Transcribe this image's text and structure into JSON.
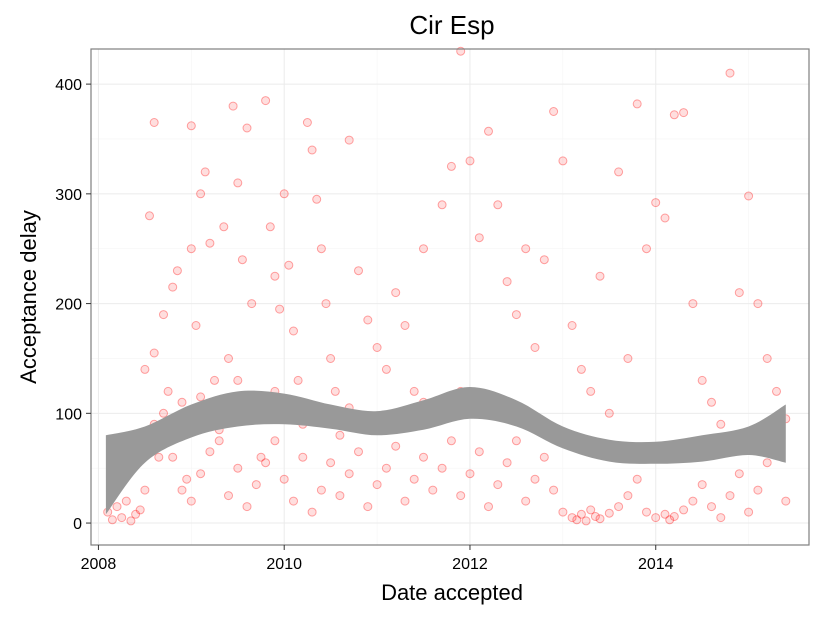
{
  "chart_data": {
    "type": "scatter",
    "title": "Cir Esp",
    "xlabel": "Date accepted",
    "ylabel": "Acceptance delay",
    "xlim": [
      2007.92,
      2015.65
    ],
    "ylim": [
      -20,
      432
    ],
    "x_ticks": [
      2008,
      2010,
      2012,
      2014
    ],
    "x_tick_labels": [
      "2008",
      "2010",
      "2012",
      "2014"
    ],
    "y_ticks": [
      0,
      100,
      200,
      300,
      400
    ],
    "y_tick_labels": [
      "0",
      "100",
      "200",
      "300",
      "400"
    ],
    "grid": true,
    "point_color": "#ff0000",
    "smooth_band_color": "#999999",
    "smooth_band": {
      "x": [
        2008.08,
        2008.5,
        2009.0,
        2009.5,
        2010.0,
        2010.5,
        2011.0,
        2011.5,
        2012.0,
        2012.5,
        2013.0,
        2013.5,
        2014.0,
        2014.5,
        2015.0,
        2015.4
      ],
      "lower": [
        8,
        55,
        78,
        88,
        90,
        86,
        80,
        85,
        95,
        88,
        68,
        56,
        54,
        56,
        62,
        55
      ],
      "upper": [
        80,
        88,
        108,
        120,
        118,
        108,
        102,
        112,
        124,
        112,
        88,
        76,
        74,
        80,
        88,
        108
      ]
    },
    "points": [
      [
        2008.1,
        10
      ],
      [
        2008.15,
        3
      ],
      [
        2008.2,
        15
      ],
      [
        2008.25,
        5
      ],
      [
        2008.3,
        20
      ],
      [
        2008.35,
        2
      ],
      [
        2008.4,
        8
      ],
      [
        2008.45,
        12
      ],
      [
        2008.5,
        30
      ],
      [
        2008.5,
        140
      ],
      [
        2008.55,
        280
      ],
      [
        2008.6,
        365
      ],
      [
        2008.6,
        155
      ],
      [
        2008.65,
        60
      ],
      [
        2008.7,
        190
      ],
      [
        2008.75,
        120
      ],
      [
        2008.8,
        215
      ],
      [
        2008.85,
        230
      ],
      [
        2008.9,
        95
      ],
      [
        2008.95,
        40
      ],
      [
        2009.0,
        362
      ],
      [
        2009.0,
        250
      ],
      [
        2009.05,
        180
      ],
      [
        2009.1,
        300
      ],
      [
        2009.15,
        320
      ],
      [
        2009.2,
        255
      ],
      [
        2009.25,
        130
      ],
      [
        2009.3,
        75
      ],
      [
        2009.35,
        270
      ],
      [
        2009.4,
        150
      ],
      [
        2009.45,
        380
      ],
      [
        2009.5,
        310
      ],
      [
        2009.55,
        240
      ],
      [
        2009.6,
        360
      ],
      [
        2009.65,
        200
      ],
      [
        2009.7,
        110
      ],
      [
        2009.75,
        60
      ],
      [
        2009.8,
        385
      ],
      [
        2009.85,
        270
      ],
      [
        2009.9,
        225
      ],
      [
        2009.95,
        195
      ],
      [
        2010.0,
        300
      ],
      [
        2010.05,
        235
      ],
      [
        2010.1,
        175
      ],
      [
        2010.15,
        130
      ],
      [
        2010.2,
        90
      ],
      [
        2010.25,
        365
      ],
      [
        2010.3,
        340
      ],
      [
        2010.35,
        295
      ],
      [
        2010.4,
        250
      ],
      [
        2010.45,
        200
      ],
      [
        2010.5,
        150
      ],
      [
        2010.55,
        120
      ],
      [
        2010.6,
        80
      ],
      [
        2010.7,
        349
      ],
      [
        2010.8,
        230
      ],
      [
        2010.9,
        185
      ],
      [
        2011.0,
        160
      ],
      [
        2011.1,
        140
      ],
      [
        2011.2,
        210
      ],
      [
        2011.3,
        180
      ],
      [
        2011.4,
        120
      ],
      [
        2011.5,
        250
      ],
      [
        2011.6,
        100
      ],
      [
        2011.7,
        290
      ],
      [
        2011.8,
        325
      ],
      [
        2011.9,
        430
      ],
      [
        2012.0,
        330
      ],
      [
        2012.1,
        260
      ],
      [
        2012.2,
        357
      ],
      [
        2012.3,
        290
      ],
      [
        2012.4,
        220
      ],
      [
        2012.5,
        190
      ],
      [
        2012.6,
        250
      ],
      [
        2012.7,
        160
      ],
      [
        2012.8,
        240
      ],
      [
        2012.9,
        375
      ],
      [
        2013.0,
        330
      ],
      [
        2013.1,
        180
      ],
      [
        2013.2,
        140
      ],
      [
        2013.3,
        120
      ],
      [
        2013.4,
        225
      ],
      [
        2013.5,
        100
      ],
      [
        2013.6,
        320
      ],
      [
        2013.7,
        150
      ],
      [
        2013.8,
        382
      ],
      [
        2013.9,
        250
      ],
      [
        2014.0,
        292
      ],
      [
        2014.1,
        278
      ],
      [
        2014.2,
        372
      ],
      [
        2014.3,
        374
      ],
      [
        2014.4,
        200
      ],
      [
        2014.5,
        130
      ],
      [
        2014.6,
        110
      ],
      [
        2014.7,
        90
      ],
      [
        2014.8,
        410
      ],
      [
        2014.9,
        210
      ],
      [
        2015.0,
        298
      ],
      [
        2015.1,
        200
      ],
      [
        2015.2,
        150
      ],
      [
        2015.3,
        120
      ],
      [
        2015.4,
        95
      ],
      [
        2008.2,
        40
      ],
      [
        2008.3,
        50
      ],
      [
        2008.4,
        70
      ],
      [
        2008.6,
        90
      ],
      [
        2008.7,
        100
      ],
      [
        2008.8,
        60
      ],
      [
        2008.9,
        30
      ],
      [
        2009.0,
        20
      ],
      [
        2009.1,
        45
      ],
      [
        2009.2,
        65
      ],
      [
        2009.3,
        85
      ],
      [
        2009.4,
        25
      ],
      [
        2009.5,
        50
      ],
      [
        2009.6,
        15
      ],
      [
        2009.7,
        35
      ],
      [
        2009.8,
        55
      ],
      [
        2009.9,
        75
      ],
      [
        2010.0,
        40
      ],
      [
        2010.1,
        20
      ],
      [
        2010.2,
        60
      ],
      [
        2010.3,
        10
      ],
      [
        2010.4,
        30
      ],
      [
        2010.5,
        55
      ],
      [
        2010.6,
        25
      ],
      [
        2010.7,
        45
      ],
      [
        2010.8,
        65
      ],
      [
        2010.9,
        15
      ],
      [
        2011.0,
        35
      ],
      [
        2011.1,
        50
      ],
      [
        2011.2,
        70
      ],
      [
        2011.3,
        20
      ],
      [
        2011.4,
        40
      ],
      [
        2011.5,
        60
      ],
      [
        2011.6,
        30
      ],
      [
        2011.7,
        50
      ],
      [
        2011.8,
        75
      ],
      [
        2011.9,
        25
      ],
      [
        2012.0,
        45
      ],
      [
        2012.1,
        65
      ],
      [
        2012.2,
        15
      ],
      [
        2012.3,
        35
      ],
      [
        2012.4,
        55
      ],
      [
        2012.5,
        75
      ],
      [
        2012.6,
        20
      ],
      [
        2012.7,
        40
      ],
      [
        2012.8,
        60
      ],
      [
        2012.9,
        30
      ],
      [
        2013.0,
        10
      ],
      [
        2013.1,
        5
      ],
      [
        2013.15,
        3
      ],
      [
        2013.2,
        8
      ],
      [
        2013.25,
        2
      ],
      [
        2013.3,
        12
      ],
      [
        2013.35,
        6
      ],
      [
        2013.4,
        4
      ],
      [
        2013.5,
        9
      ],
      [
        2013.6,
        15
      ],
      [
        2013.7,
        25
      ],
      [
        2013.8,
        40
      ],
      [
        2013.9,
        10
      ],
      [
        2014.0,
        5
      ],
      [
        2014.1,
        8
      ],
      [
        2014.15,
        3
      ],
      [
        2014.2,
        6
      ],
      [
        2014.3,
        12
      ],
      [
        2014.4,
        20
      ],
      [
        2014.5,
        35
      ],
      [
        2014.6,
        15
      ],
      [
        2014.7,
        5
      ],
      [
        2014.8,
        25
      ],
      [
        2014.9,
        45
      ],
      [
        2015.0,
        10
      ],
      [
        2015.1,
        30
      ],
      [
        2015.2,
        55
      ],
      [
        2015.3,
        80
      ],
      [
        2015.4,
        20
      ],
      [
        2008.9,
        110
      ],
      [
        2009.1,
        115
      ],
      [
        2009.3,
        105
      ],
      [
        2009.5,
        130
      ],
      [
        2009.7,
        95
      ],
      [
        2009.9,
        120
      ],
      [
        2010.1,
        108
      ],
      [
        2010.3,
        100
      ],
      [
        2010.5,
        92
      ],
      [
        2010.7,
        105
      ],
      [
        2010.9,
        88
      ],
      [
        2011.1,
        98
      ],
      [
        2011.3,
        102
      ],
      [
        2011.5,
        110
      ],
      [
        2011.7,
        108
      ],
      [
        2011.9,
        120
      ],
      [
        2012.1,
        115
      ],
      [
        2012.3,
        104
      ],
      [
        2012.5,
        96
      ],
      [
        2012.7,
        90
      ],
      [
        2012.9,
        84
      ],
      [
        2013.1,
        78
      ],
      [
        2013.3,
        72
      ],
      [
        2013.5,
        70
      ],
      [
        2013.7,
        68
      ],
      [
        2013.9,
        66
      ],
      [
        2014.1,
        65
      ],
      [
        2014.3,
        67
      ],
      [
        2014.5,
        70
      ],
      [
        2014.7,
        72
      ],
      [
        2014.9,
        75
      ],
      [
        2015.1,
        78
      ],
      [
        2015.3,
        85
      ]
    ]
  }
}
